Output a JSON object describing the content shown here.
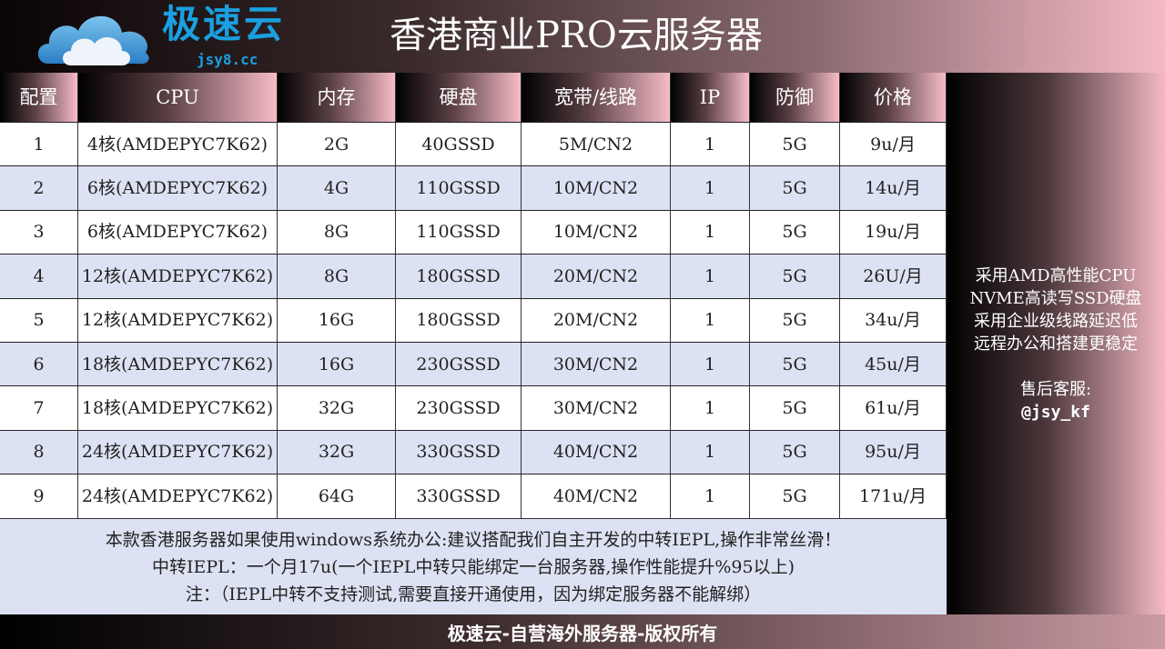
{
  "header": {
    "brand": "极速云",
    "domain": "jsy8.cc",
    "title": "香港商业PRO云服务器"
  },
  "table": {
    "columns": [
      "配置",
      "CPU",
      "内存",
      "硬盘",
      "宽带/线路",
      "IP",
      "防御",
      "价格"
    ],
    "rows": [
      [
        "1",
        "4核(AMDEPYC7K62)",
        "2G",
        "40GSSD",
        "5M/CN2",
        "1",
        "5G",
        "9u/月"
      ],
      [
        "2",
        "6核(AMDEPYC7K62)",
        "4G",
        "110GSSD",
        "10M/CN2",
        "1",
        "5G",
        "14u/月"
      ],
      [
        "3",
        "6核(AMDEPYC7K62)",
        "8G",
        "110GSSD",
        "10M/CN2",
        "1",
        "5G",
        "19u/月"
      ],
      [
        "4",
        "12核(AMDEPYC7K62)",
        "8G",
        "180GSSD",
        "20M/CN2",
        "1",
        "5G",
        "26U/月"
      ],
      [
        "5",
        "12核(AMDEPYC7K62)",
        "16G",
        "180GSSD",
        "20M/CN2",
        "1",
        "5G",
        "34u/月"
      ],
      [
        "6",
        "18核(AMDEPYC7K62)",
        "16G",
        "230GSSD",
        "30M/CN2",
        "1",
        "5G",
        "45u/月"
      ],
      [
        "7",
        "18核(AMDEPYC7K62)",
        "32G",
        "230GSSD",
        "30M/CN2",
        "1",
        "5G",
        "61u/月"
      ],
      [
        "8",
        "24核(AMDEPYC7K62)",
        "32G",
        "330GSSD",
        "40M/CN2",
        "1",
        "5G",
        "95u/月"
      ],
      [
        "9",
        "24核(AMDEPYC7K62)",
        "64G",
        "330GSSD",
        "40M/CN2",
        "1",
        "5G",
        "171u/月"
      ]
    ]
  },
  "notes": [
    "本款香港服务器如果使用windows系统办公:建议搭配我们自主开发的中转IEPL,操作非常丝滑！",
    "中转IEPL：一个月17u(一个IEPL中转只能绑定一台服务器,操作性能提升%95以上)",
    "注：（IEPL中转不支持测试,需要直接开通使用，因为绑定服务器不能解绑）"
  ],
  "sidebar": {
    "features": [
      "采用AMD高性能CPU",
      "NVME高读写SSD硬盘",
      "采用企业级线路延迟低",
      "远程办公和搭建更稳定"
    ],
    "support_label": "售后客服:",
    "support_handle": "@jsy_kf"
  },
  "footer": "极速云-自营海外服务器-版权所有",
  "colors": {
    "brand": "#1aa0e0",
    "row_alt": "#dce2f3",
    "header_pink": "#f6bcc7"
  }
}
